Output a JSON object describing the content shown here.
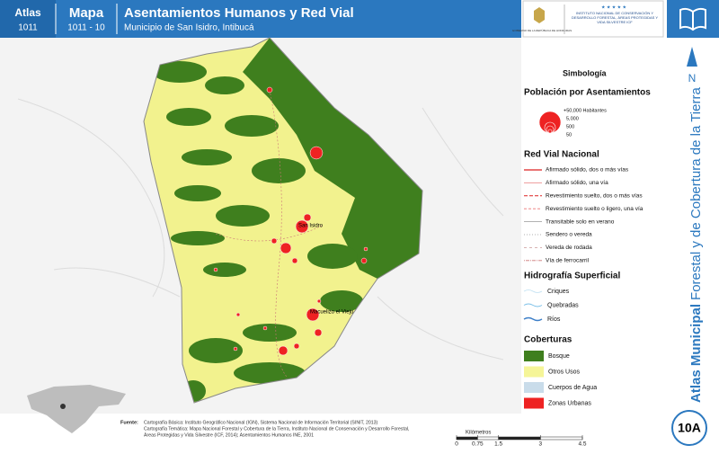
{
  "header": {
    "atlas_label": "Atlas",
    "atlas_number": "1011",
    "map_label": "Mapa",
    "map_number": "1011 - 10",
    "title": "Asentamientos Humanos y Red Vial",
    "subtitle": "Municipio de San Isidro, Intibucá",
    "logo_left": "GOBIERNO DE LA REPÚBLICA DE HONDURAS",
    "logo_right": "INSTITUTO NACIONAL DE CONSERVACIÓN Y DESARROLLO FORESTAL, ÁREAS PROTEGIDAS Y VIDA SILVESTRE ICF"
  },
  "map": {
    "places": [
      "San Isidro",
      "Macuelizo el Viejo"
    ]
  },
  "legend": {
    "title": "Simbología",
    "population": {
      "title": "Población por Asentamientos",
      "sizes": [
        "+50,000 Habitantes",
        "5,000",
        "500",
        "50"
      ]
    },
    "roads": {
      "title": "Red Vial Nacional",
      "items": [
        "Afirmado sólido, dos o más vías",
        "Afirmado sólido, una vía",
        "Revestimiento suelto, dos o más vías",
        "Revestimiento suelto o ligero, una vía",
        "Transitable solo en verano",
        "Sendero o vereda",
        "Vereda de rodada",
        "Vía de ferrocarril"
      ]
    },
    "hydrography": {
      "title": "Hidrografía Superficial",
      "items": [
        "Criques",
        "Quebradas",
        "Ríos"
      ]
    },
    "coverage": {
      "title": "Coberturas",
      "items": [
        {
          "name": "Bosque",
          "color": "#3f7f1e"
        },
        {
          "name": "Otros Usos",
          "color": "#f5f598"
        },
        {
          "name": "Cuerpos de Agua",
          "color": "#c9dcea"
        },
        {
          "name": "Zonas Urbanas",
          "color": "#ee2222"
        }
      ]
    }
  },
  "side": {
    "title_bold": "Atlas Municipal",
    "title_rest": "Forestal y de Cobertura de la Tierra",
    "north": "N",
    "sheet": "10A"
  },
  "scale": {
    "unit": "Kilómetros",
    "ticks": [
      0,
      0.75,
      1.5,
      3,
      4.5
    ]
  },
  "footer": {
    "label": "Fuente:",
    "lines": [
      "Cartografía Básica: Instituto Geográfico Nacional (IGN), Sistema Nacional de Información Territorial (SINIT, 2013)",
      "Cartografía Temática: Mapa Nacional Forestal y Cobertura de la Tierra, Instituto Nacional de Conservación y Desarrollo Forestal,",
      "Áreas Protegidas y Vida Silvestre (ICF, 2014); Asentamientos Humanos INE, 2001"
    ]
  }
}
